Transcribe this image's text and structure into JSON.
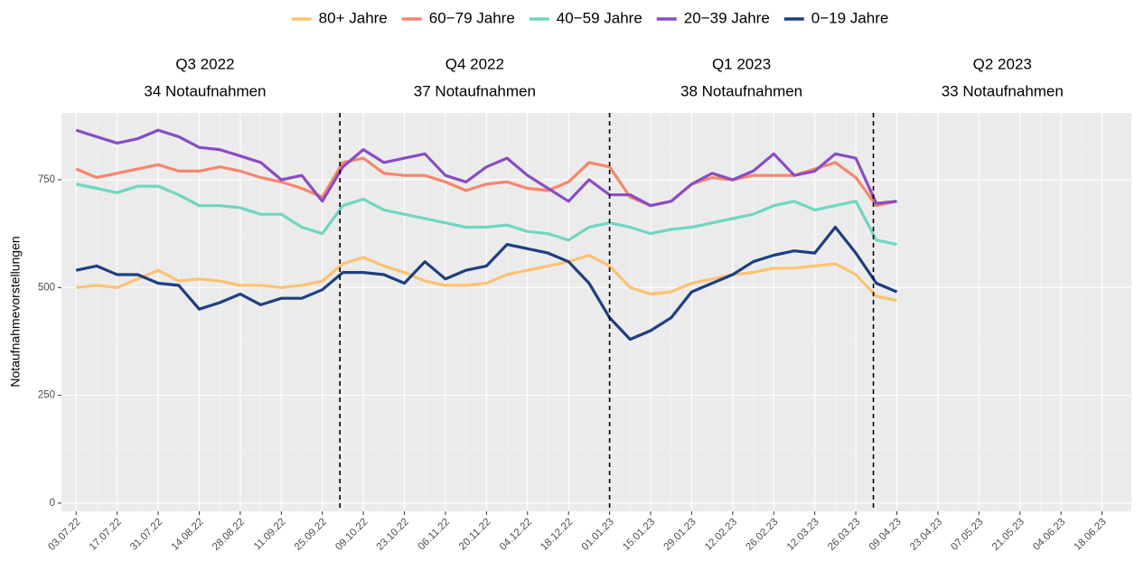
{
  "chart_data": {
    "type": "line",
    "y_label": "Notaufnahmevorstellungen",
    "x": [
      "03.07.22",
      "10.07.22",
      "17.07.22",
      "24.07.22",
      "31.07.22",
      "07.08.22",
      "14.08.22",
      "21.08.22",
      "28.08.22",
      "04.09.22",
      "11.09.22",
      "18.09.22",
      "25.09.22",
      "02.10.22",
      "09.10.22",
      "16.10.22",
      "23.10.22",
      "30.10.22",
      "06.11.22",
      "13.11.22",
      "20.11.22",
      "27.11.22",
      "04.12.22",
      "11.12.22",
      "18.12.22",
      "25.12.22",
      "01.01.23",
      "08.01.23",
      "15.01.23",
      "22.01.23",
      "29.01.23",
      "05.02.23",
      "12.02.23",
      "19.02.23",
      "26.02.23",
      "05.03.23",
      "12.03.23",
      "19.03.23",
      "26.03.23",
      "02.04.23",
      "09.04.23"
    ],
    "series": [
      {
        "name": "80+ Jahre",
        "color": "#fdc271",
        "values": [
          500,
          505,
          500,
          520,
          540,
          515,
          520,
          515,
          505,
          505,
          500,
          505,
          515,
          555,
          570,
          550,
          535,
          515,
          505,
          505,
          510,
          530,
          540,
          550,
          560,
          575,
          550,
          500,
          485,
          490,
          510,
          520,
          530,
          535,
          545,
          545,
          550,
          555,
          530,
          480,
          470
        ]
      },
      {
        "name": "60−79 Jahre",
        "color": "#f8866a",
        "values": [
          775,
          755,
          765,
          775,
          785,
          770,
          770,
          780,
          770,
          755,
          745,
          730,
          710,
          790,
          800,
          765,
          760,
          760,
          745,
          725,
          740,
          745,
          730,
          725,
          745,
          790,
          780,
          710,
          690,
          700,
          740,
          755,
          750,
          760,
          760,
          760,
          775,
          790,
          755,
          690,
          700
        ]
      },
      {
        "name": "40−59 Jahre",
        "color": "#6fd6c0",
        "values": [
          740,
          730,
          720,
          735,
          735,
          715,
          690,
          690,
          685,
          670,
          670,
          640,
          625,
          690,
          705,
          680,
          670,
          660,
          650,
          640,
          640,
          645,
          630,
          625,
          610,
          640,
          650,
          640,
          625,
          635,
          640,
          650,
          660,
          670,
          690,
          700,
          680,
          690,
          700,
          610,
          600
        ]
      },
      {
        "name": "20−39 Jahre",
        "color": "#8a4cc4",
        "values": [
          865,
          850,
          835,
          845,
          865,
          850,
          825,
          820,
          805,
          790,
          750,
          760,
          700,
          780,
          820,
          790,
          800,
          810,
          760,
          745,
          780,
          800,
          760,
          730,
          700,
          750,
          715,
          715,
          690,
          700,
          740,
          765,
          750,
          770,
          810,
          760,
          770,
          810,
          800,
          695,
          700
        ]
      },
      {
        "name": "0−19 Jahre",
        "color": "#1e3f80",
        "values": [
          540,
          550,
          530,
          530,
          510,
          505,
          450,
          465,
          485,
          460,
          475,
          475,
          495,
          535,
          535,
          530,
          510,
          560,
          520,
          540,
          550,
          600,
          590,
          580,
          560,
          510,
          430,
          380,
          400,
          430,
          490,
          510,
          530,
          560,
          575,
          585,
          580,
          640,
          580,
          510,
          490
        ]
      }
    ],
    "quarters": [
      {
        "label": "Q3 2022",
        "sub": "34 Notaufnahmen",
        "start": "01.07.22"
      },
      {
        "label": "Q4 2022",
        "sub": "37 Notaufnahmen",
        "start": "01.10.22"
      },
      {
        "label": "Q1 2023",
        "sub": "38 Notaufnahmen",
        "start": "01.01.23"
      },
      {
        "label": "Q2 2023",
        "sub": "33 Notaufnahmen",
        "start": "01.04.23"
      }
    ],
    "xlim": [
      "28.06.22",
      "28.06.23"
    ],
    "xticks": [
      "03.07.22",
      "17.07.22",
      "31.07.22",
      "14.08.22",
      "28.08.22",
      "11.09.22",
      "25.09.22",
      "09.10.22",
      "23.10.22",
      "06.11.22",
      "20.11.22",
      "04.12.22",
      "18.12.22",
      "01.01.23",
      "15.01.23",
      "29.01.23",
      "12.02.23",
      "26.02.23",
      "12.03.23",
      "26.03.23",
      "09.04.23",
      "23.04.23",
      "07.05.23",
      "21.05.23",
      "04.06.23",
      "18.06.23"
    ],
    "ylim": [
      -19,
      905
    ],
    "yticks": [
      0,
      250,
      500,
      750
    ],
    "grid": true
  }
}
